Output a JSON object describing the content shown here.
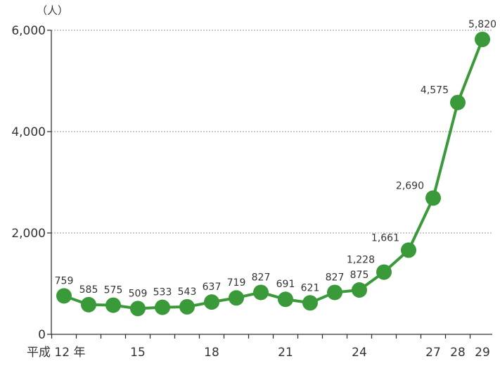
{
  "chart_data": {
    "type": "line",
    "title": "",
    "y_unit": "（人）",
    "x_first_label": "平成 12 年",
    "ylim": [
      0,
      6000
    ],
    "y_ticks": [
      0,
      2000,
      4000,
      6000
    ],
    "y_tick_labels": [
      "0",
      "2,000",
      "4,000",
      "6,000"
    ],
    "x": [
      12,
      13,
      14,
      15,
      16,
      17,
      18,
      19,
      20,
      21,
      22,
      23,
      24,
      25,
      26,
      27,
      28,
      29
    ],
    "x_tick_labels": {
      "12": "平成 12 年",
      "15": "15",
      "18": "18",
      "21": "21",
      "24": "24",
      "27": "27",
      "28": "28",
      "29": "29"
    },
    "series": [
      {
        "values": [
          759,
          585,
          575,
          509,
          533,
          543,
          637,
          719,
          827,
          691,
          621,
          827,
          875,
          1228,
          1661,
          2690,
          4575,
          5820
        ],
        "labels": [
          "759",
          "585",
          "575",
          "509",
          "533",
          "543",
          "637",
          "719",
          "827",
          "691",
          "621",
          "827",
          "875",
          "1,228",
          "1,661",
          "2,690",
          "4,575",
          "5,820"
        ],
        "color": "#3a9a3a"
      }
    ],
    "grid": "horizontal-dotted"
  }
}
